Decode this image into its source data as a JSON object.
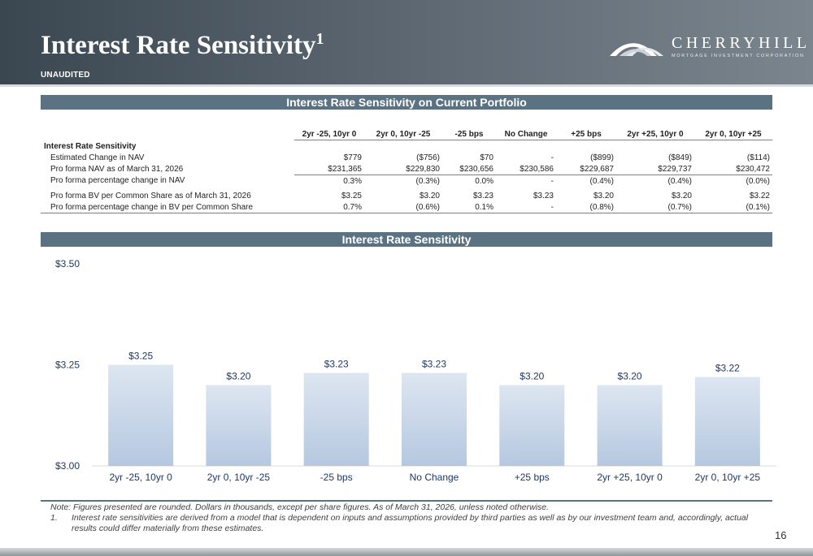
{
  "header": {
    "title": "Interest Rate Sensitivity",
    "title_sup": "1",
    "subtitle": "UNAUDITED",
    "logo_name": "CHERRYHILL",
    "logo_sub": "MORTGAGE INVESTMENT CORPORATION"
  },
  "table_section": {
    "title": "Interest Rate Sensitivity on Current Portfolio",
    "columns": [
      "2yr -25, 10yr 0",
      "2yr 0, 10yr -25",
      "-25 bps",
      "No Change",
      "+25 bps",
      "2yr +25, 10yr 0",
      "2yr 0, 10yr +25"
    ],
    "group_label": "Interest Rate Sensitivity",
    "rows": [
      {
        "label": "Estimated Change in NAV",
        "values": [
          "$779",
          "($756)",
          "$70",
          "-",
          "($899)",
          "($849)",
          "($114)"
        ]
      },
      {
        "label": "Pro forma NAV as of March 31, 2026",
        "values": [
          "$231,365",
          "$229,830",
          "$230,656",
          "$230,586",
          "$229,687",
          "$229,737",
          "$230,472"
        ]
      },
      {
        "label": "Pro forma percentage change in NAV",
        "values": [
          "0.3%",
          "(0.3%)",
          "0.0%",
          "-",
          "(0.4%)",
          "(0.4%)",
          "(0.0%)"
        ]
      },
      {
        "label": "Pro forma BV per Common Share as of March 31, 2026",
        "values": [
          "$3.25",
          "$3.20",
          "$3.23",
          "$3.23",
          "$3.20",
          "$3.20",
          "$3.22"
        ]
      },
      {
        "label": "Pro forma percentage change in BV per Common Share",
        "values": [
          "0.7%",
          "(0.6%)",
          "0.1%",
          "-",
          "(0.8%)",
          "(0.7%)",
          "(0.1%)"
        ]
      }
    ]
  },
  "chart_section": {
    "title": "Interest Rate Sensitivity"
  },
  "chart_data": {
    "type": "bar",
    "title": "Interest Rate Sensitivity",
    "categories": [
      "2yr -25, 10yr 0",
      "2yr 0, 10yr -25",
      "-25 bps",
      "No Change",
      "+25 bps",
      "2yr +25, 10yr 0",
      "2yr 0, 10yr +25"
    ],
    "values": [
      3.25,
      3.2,
      3.23,
      3.23,
      3.2,
      3.2,
      3.22
    ],
    "data_labels": [
      "$3.25",
      "$3.20",
      "$3.23",
      "$3.23",
      "$3.20",
      "$3.20",
      "$3.22"
    ],
    "ylim": [
      3.0,
      3.5
    ],
    "yticks": [
      3.0,
      3.25,
      3.5
    ],
    "ytick_labels": [
      "$3.00",
      "$3.25",
      "$3.50"
    ],
    "xlabel": "",
    "ylabel": "",
    "grid": false,
    "legend": "none",
    "colors": {
      "bar_top": "#dde6f1",
      "bar_bottom": "#b5c8e0",
      "label": "#1f3864",
      "axis": "#d9d9d9"
    }
  },
  "notes": {
    "note": "Note: Figures presented are rounded. Dollars in thousands, except per share figures. As of March 31, 2026, unless noted otherwise.",
    "footnote_num": "1.",
    "footnote": "Interest rate sensitivities are derived from a model that is dependent on inputs and assumptions provided by third parties as well as by our investment team and, accordingly, actual results could differ materially from these estimates."
  },
  "page_number": "16"
}
